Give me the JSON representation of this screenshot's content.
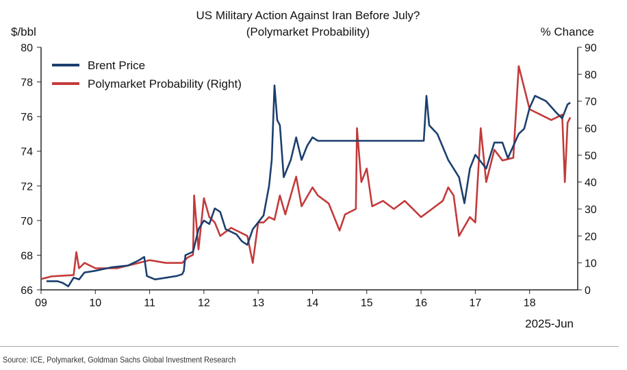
{
  "chart_data": {
    "type": "line",
    "title": "US Military Action Against Iran Before July?",
    "subtitle": "(Polymarket Probability)",
    "ylabel_left": "$/bbl",
    "ylabel_right": "% Chance",
    "xlabel": "2025-Jun",
    "xlim": [
      9,
      18.9
    ],
    "ylim_left": [
      66,
      80
    ],
    "ylim_right": [
      0,
      90
    ],
    "x_ticks": [
      "09",
      "10",
      "11",
      "12",
      "13",
      "14",
      "15",
      "16",
      "17",
      "18"
    ],
    "y_left_ticks": [
      "66",
      "68",
      "70",
      "72",
      "74",
      "76",
      "78",
      "80"
    ],
    "y_right_ticks": [
      "0",
      "10",
      "20",
      "30",
      "40",
      "50",
      "60",
      "70",
      "80",
      "90"
    ],
    "legend": [
      "Brent Price",
      "Polymarket Probability (Right)"
    ],
    "legend_position": "top-left",
    "colors": {
      "brent": "#1b3f6e",
      "poly": "#c33a3a"
    },
    "series": [
      {
        "name": "Brent Price",
        "axis": "left",
        "points": [
          [
            9.1,
            66.5
          ],
          [
            9.3,
            66.5
          ],
          [
            9.4,
            66.4
          ],
          [
            9.5,
            66.2
          ],
          [
            9.6,
            66.7
          ],
          [
            9.7,
            66.6
          ],
          [
            9.8,
            67.0
          ],
          [
            10.0,
            67.1
          ],
          [
            10.3,
            67.3
          ],
          [
            10.6,
            67.4
          ],
          [
            10.8,
            67.7
          ],
          [
            10.9,
            67.9
          ],
          [
            10.95,
            66.8
          ],
          [
            11.1,
            66.6
          ],
          [
            11.3,
            66.7
          ],
          [
            11.5,
            66.8
          ],
          [
            11.6,
            66.9
          ],
          [
            11.63,
            67.1
          ],
          [
            11.66,
            68.0
          ],
          [
            11.8,
            68.2
          ],
          [
            11.9,
            69.5
          ],
          [
            12.0,
            70.0
          ],
          [
            12.1,
            69.8
          ],
          [
            12.2,
            70.7
          ],
          [
            12.3,
            70.5
          ],
          [
            12.4,
            69.5
          ],
          [
            12.6,
            69.2
          ],
          [
            12.7,
            68.8
          ],
          [
            12.8,
            68.6
          ],
          [
            12.9,
            69.5
          ],
          [
            13.0,
            69.9
          ],
          [
            13.1,
            70.3
          ],
          [
            13.2,
            72.0
          ],
          [
            13.25,
            73.5
          ],
          [
            13.3,
            77.8
          ],
          [
            13.35,
            75.8
          ],
          [
            13.4,
            75.5
          ],
          [
            13.47,
            72.5
          ],
          [
            13.6,
            73.5
          ],
          [
            13.7,
            74.8
          ],
          [
            13.8,
            73.5
          ],
          [
            13.9,
            74.3
          ],
          [
            14.0,
            74.8
          ],
          [
            14.1,
            74.6
          ],
          [
            15.0,
            74.6
          ],
          [
            16.05,
            74.6
          ],
          [
            16.1,
            77.2
          ],
          [
            16.15,
            75.5
          ],
          [
            16.3,
            75.0
          ],
          [
            16.5,
            73.5
          ],
          [
            16.7,
            72.5
          ],
          [
            16.8,
            71.0
          ],
          [
            16.9,
            73.0
          ],
          [
            17.0,
            73.8
          ],
          [
            17.2,
            73.0
          ],
          [
            17.35,
            74.5
          ],
          [
            17.5,
            74.5
          ],
          [
            17.6,
            73.6
          ],
          [
            17.8,
            75.0
          ],
          [
            17.9,
            75.3
          ],
          [
            18.0,
            76.5
          ],
          [
            18.1,
            77.2
          ],
          [
            18.3,
            76.9
          ],
          [
            18.5,
            76.2
          ],
          [
            18.6,
            75.9
          ],
          [
            18.7,
            76.7
          ],
          [
            18.75,
            76.8
          ]
        ]
      },
      {
        "name": "Polymarket Probability (Right)",
        "axis": "right",
        "points": [
          [
            9.0,
            4
          ],
          [
            9.2,
            5
          ],
          [
            9.6,
            5.5
          ],
          [
            9.65,
            14
          ],
          [
            9.7,
            8
          ],
          [
            9.8,
            10
          ],
          [
            9.9,
            9
          ],
          [
            10.0,
            8
          ],
          [
            10.4,
            8
          ],
          [
            10.6,
            9
          ],
          [
            10.8,
            10
          ],
          [
            11.0,
            11
          ],
          [
            11.3,
            10
          ],
          [
            11.6,
            10
          ],
          [
            11.7,
            12
          ],
          [
            11.8,
            13
          ],
          [
            11.82,
            35
          ],
          [
            11.9,
            15
          ],
          [
            12.0,
            34
          ],
          [
            12.1,
            27
          ],
          [
            12.2,
            25
          ],
          [
            12.3,
            20
          ],
          [
            12.5,
            23
          ],
          [
            12.8,
            20
          ],
          [
            12.9,
            10
          ],
          [
            13.0,
            25
          ],
          [
            13.1,
            25
          ],
          [
            13.2,
            27
          ],
          [
            13.3,
            26
          ],
          [
            13.4,
            35
          ],
          [
            13.5,
            28
          ],
          [
            13.7,
            42
          ],
          [
            13.8,
            31
          ],
          [
            14.0,
            38
          ],
          [
            14.1,
            35
          ],
          [
            14.3,
            32
          ],
          [
            14.5,
            22
          ],
          [
            14.6,
            28
          ],
          [
            14.8,
            30
          ],
          [
            14.82,
            60
          ],
          [
            14.9,
            40
          ],
          [
            15.0,
            45
          ],
          [
            15.1,
            31
          ],
          [
            15.3,
            33
          ],
          [
            15.5,
            30
          ],
          [
            15.7,
            33
          ],
          [
            15.9,
            29
          ],
          [
            16.0,
            27
          ],
          [
            16.2,
            30
          ],
          [
            16.4,
            33
          ],
          [
            16.5,
            38
          ],
          [
            16.6,
            35
          ],
          [
            16.7,
            20
          ],
          [
            16.9,
            27
          ],
          [
            17.0,
            25
          ],
          [
            17.1,
            60
          ],
          [
            17.2,
            40
          ],
          [
            17.35,
            52
          ],
          [
            17.5,
            48
          ],
          [
            17.7,
            49
          ],
          [
            17.8,
            83
          ],
          [
            17.9,
            75
          ],
          [
            18.0,
            67
          ],
          [
            18.2,
            65
          ],
          [
            18.4,
            63
          ],
          [
            18.6,
            65
          ],
          [
            18.65,
            40
          ],
          [
            18.7,
            62
          ],
          [
            18.75,
            64
          ]
        ]
      }
    ]
  },
  "source": "Source: ICE, Polymarket, Goldman Sachs Global Investment Research"
}
